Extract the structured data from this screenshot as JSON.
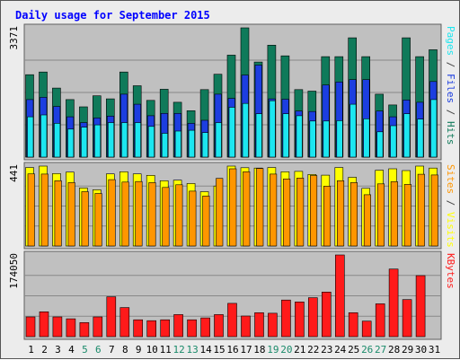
{
  "chart_data": {
    "title": "Daily usage for September 2015",
    "x": [
      "1",
      "2",
      "3",
      "4",
      "5",
      "6",
      "7",
      "8",
      "9",
      "10",
      "11",
      "12",
      "13",
      "14",
      "15",
      "16",
      "17",
      "18",
      "19",
      "20",
      "21",
      "22",
      "23",
      "24",
      "25",
      "26",
      "27",
      "28",
      "29",
      "30",
      "31"
    ],
    "weekend_days": [
      "5",
      "6",
      "12",
      "13",
      "19",
      "20",
      "26",
      "27"
    ],
    "panels": [
      {
        "type": "bar",
        "ymax_label": "3371",
        "ylim": [
          0,
          3371
        ],
        "series": [
          {
            "name": "Hits",
            "color": "#0f7a5a",
            "values": [
              2150,
              2220,
              1800,
              1500,
              1310,
              1600,
              1520,
              2220,
              1860,
              1480,
              1770,
              1430,
              1210,
              1760,
              2160,
              2660,
              3370,
              2480,
              2920,
              2640,
              1760,
              1720,
              2620,
              2620,
              3110,
              2620,
              1640,
              1360,
              3110,
              2620,
              2800
            ]
          },
          {
            "name": "Files",
            "color": "#1c3ee0",
            "values": [
              1500,
              1560,
              1320,
              1050,
              900,
              1020,
              1070,
              1640,
              1380,
              1080,
              1140,
              1140,
              880,
              960,
              1640,
              1530,
              2140,
              2400,
              1520,
              1510,
              1200,
              1190,
              1880,
              1960,
              2020,
              2020,
              1200,
              1050,
              1490,
              1430,
              1970
            ]
          },
          {
            "name": "Pages",
            "color": "#1ce6f0",
            "values": [
              1050,
              1100,
              880,
              730,
              780,
              840,
              900,
              900,
              900,
              800,
              620,
              680,
              700,
              640,
              900,
              1300,
              1400,
              1130,
              1470,
              1130,
              1080,
              940,
              940,
              950,
              1380,
              1000,
              660,
              820,
              1130,
              990,
              1500
            ]
          }
        ],
        "legend_text": [
          "Pages",
          " / ",
          "Files",
          " / ",
          "Hits"
        ],
        "legend_colors": [
          "#1ce6f0",
          "#444444",
          "#1c3ee0",
          "#444444",
          "#0f7a5a"
        ]
      },
      {
        "type": "bar",
        "ymax_label": "441",
        "ylim": [
          0,
          441
        ],
        "series": [
          {
            "name": "Visits",
            "color": "#ffff00",
            "values": [
              433,
              441,
              400,
              408,
              320,
              310,
              398,
              410,
              398,
              390,
              360,
              363,
              345,
              300,
              331,
              441,
              432,
              430,
              433,
              410,
              412,
              395,
              391,
              433,
              379,
              318,
              418,
              426,
              416,
              441,
              430
            ]
          },
          {
            "name": "Sites",
            "color": "#ff9600",
            "values": [
              398,
              397,
              360,
              350,
              300,
              290,
              366,
              353,
              356,
              350,
              323,
              338,
              303,
              276,
              373,
              426,
              410,
              428,
              397,
              370,
              375,
              389,
              330,
              360,
              350,
              283,
              343,
              355,
              340,
              396,
              392
            ]
          }
        ],
        "legend_text": [
          "Sites",
          " / ",
          "Visits"
        ],
        "legend_colors": [
          "#ff9600",
          "#444444",
          "#ffff00"
        ]
      },
      {
        "type": "bar",
        "ymax_label": "174050",
        "ylim": [
          0,
          174050
        ],
        "series": [
          {
            "name": "KBytes",
            "color": "#ff1a1a",
            "values": [
              42000,
              53000,
              42000,
              38000,
              30000,
              42000,
              85000,
              62000,
              36000,
              34000,
              36000,
              47000,
              36000,
              40000,
              47000,
              71000,
              44000,
              51000,
              50000,
              78000,
              74000,
              83000,
              95000,
              174050,
              51000,
              33000,
              70000,
              144000,
              79000,
              130000,
              0
            ]
          }
        ],
        "legend_text": [
          "KBytes"
        ],
        "legend_colors": [
          "#ff1a1a"
        ]
      }
    ],
    "grid": true,
    "background": "#c0c0c0",
    "title_color": "#0000ff",
    "weekday_label_color": "#000000",
    "weekend_label_color": "#1a8a6a"
  }
}
